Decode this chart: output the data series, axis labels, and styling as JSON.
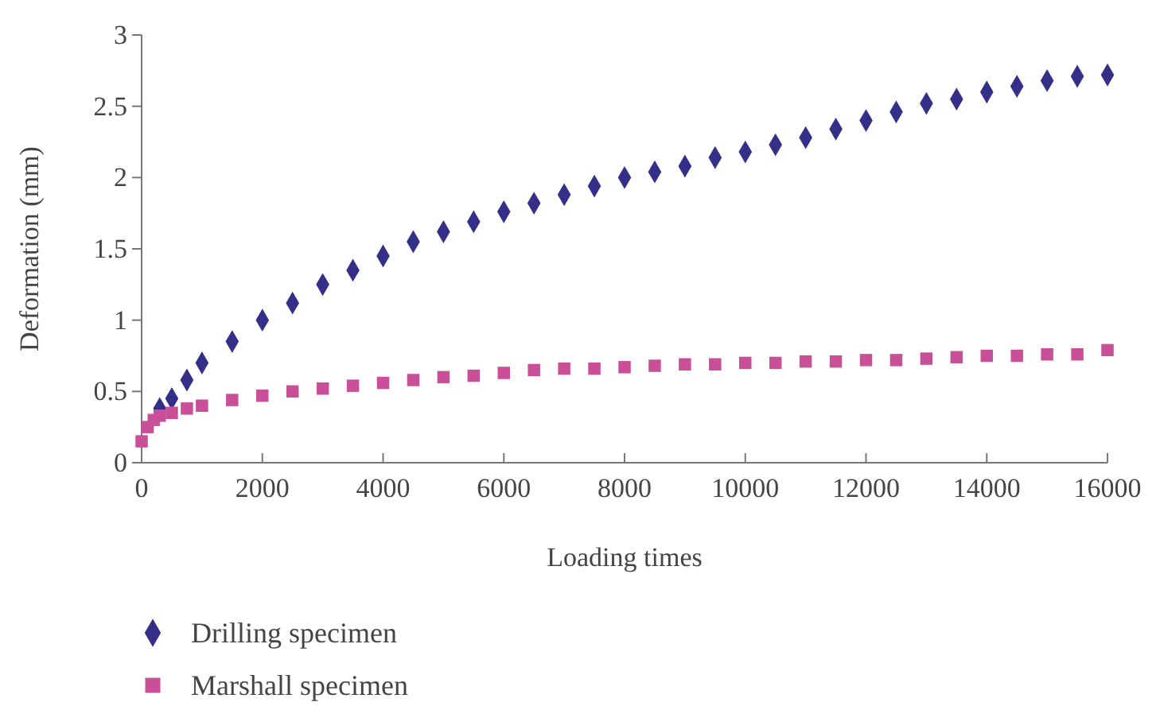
{
  "chart_data": {
    "type": "scatter",
    "xlabel": "Loading times",
    "ylabel": "Deformation (mm)",
    "xlim": [
      0,
      16000
    ],
    "ylim": [
      0,
      3
    ],
    "xticks": [
      0,
      2000,
      4000,
      6000,
      8000,
      10000,
      12000,
      14000,
      16000
    ],
    "yticks": [
      0,
      0.5,
      1,
      1.5,
      2,
      2.5,
      3
    ],
    "grid": false,
    "legend": "bottom left",
    "series": [
      {
        "name": "Drilling specimen",
        "color": "#34308a",
        "marker": "diamond",
        "x": [
          300,
          500,
          750,
          1000,
          1500,
          2000,
          2500,
          3000,
          3500,
          4000,
          4500,
          5000,
          5500,
          6000,
          6500,
          7000,
          7500,
          8000,
          8500,
          9000,
          9500,
          10000,
          10500,
          11000,
          11500,
          12000,
          12500,
          13000,
          13500,
          14000,
          14500,
          15000,
          15500,
          16000
        ],
        "values": [
          0.38,
          0.45,
          0.58,
          0.7,
          0.85,
          1.0,
          1.12,
          1.25,
          1.35,
          1.45,
          1.55,
          1.62,
          1.69,
          1.76,
          1.82,
          1.88,
          1.94,
          2.0,
          2.04,
          2.08,
          2.14,
          2.18,
          2.23,
          2.28,
          2.34,
          2.4,
          2.46,
          2.52,
          2.55,
          2.6,
          2.64,
          2.68,
          2.71,
          2.72
        ]
      },
      {
        "name": "Marshall specimen",
        "color": "#c94f98",
        "marker": "square",
        "x": [
          0,
          100,
          200,
          300,
          500,
          750,
          1000,
          1500,
          2000,
          2500,
          3000,
          3500,
          4000,
          4500,
          5000,
          5500,
          6000,
          6500,
          7000,
          7500,
          8000,
          8500,
          9000,
          9500,
          10000,
          10500,
          11000,
          11500,
          12000,
          12500,
          13000,
          13500,
          14000,
          14500,
          15000,
          15500,
          16000
        ],
        "values": [
          0.15,
          0.25,
          0.3,
          0.33,
          0.35,
          0.38,
          0.4,
          0.44,
          0.47,
          0.5,
          0.52,
          0.54,
          0.56,
          0.58,
          0.6,
          0.61,
          0.63,
          0.65,
          0.66,
          0.66,
          0.67,
          0.68,
          0.69,
          0.69,
          0.7,
          0.7,
          0.71,
          0.71,
          0.72,
          0.72,
          0.73,
          0.74,
          0.75,
          0.75,
          0.76,
          0.76,
          0.79
        ]
      }
    ]
  }
}
